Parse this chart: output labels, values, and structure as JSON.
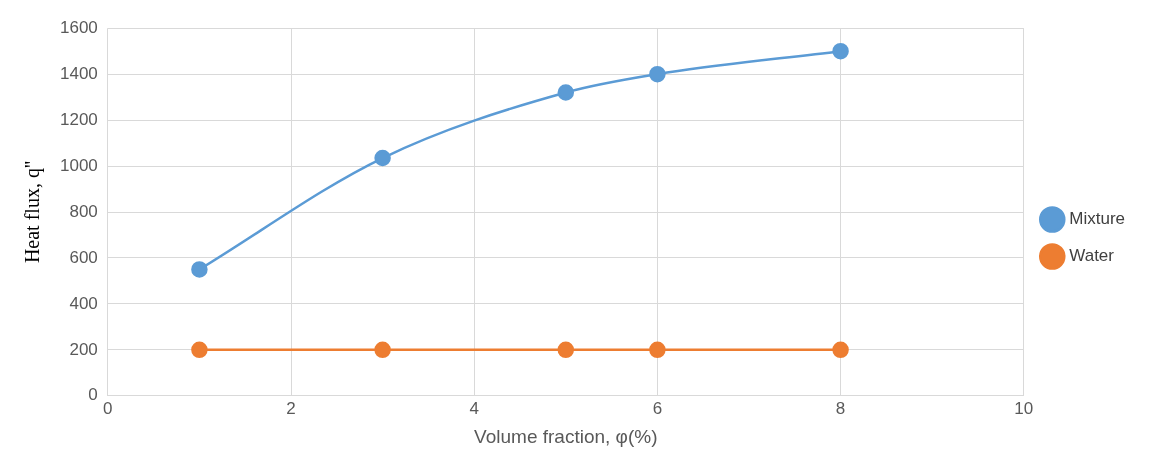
{
  "chart_data": {
    "type": "line",
    "xlabel": "Volume fraction, φ(%)",
    "ylabel": "Heat flux, q''",
    "x": [
      1,
      3,
      5,
      6,
      8
    ],
    "series": [
      {
        "name": "Mixture",
        "color": "#5b9bd5",
        "values": [
          550,
          1035,
          1320,
          1400,
          1500
        ]
      },
      {
        "name": "Water",
        "color": "#ed7d31",
        "values": [
          200,
          200,
          200,
          200,
          200
        ]
      }
    ],
    "xlim": [
      0,
      10
    ],
    "xticks": [
      0,
      2,
      4,
      6,
      8,
      10
    ],
    "ylim": [
      0,
      1600
    ],
    "yticks": [
      0,
      200,
      400,
      600,
      800,
      1000,
      1200,
      1400,
      1600
    ],
    "grid": true,
    "legend": "right",
    "marker": "circle"
  }
}
